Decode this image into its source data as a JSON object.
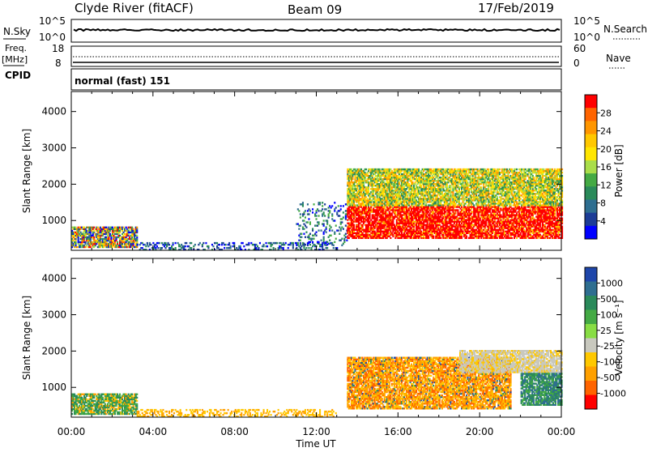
{
  "header": {
    "station": "Clyde River (fitACF)",
    "beam": "Beam 09",
    "date": "17/Feb/2019"
  },
  "noise_panel": {
    "left_label": "N.Sky",
    "left_ticks": [
      "10^5",
      "10^0"
    ],
    "right_ticks": [
      "10^5",
      "10^0"
    ],
    "right_label": "N.Search"
  },
  "freq_panel": {
    "left_label_line1": "Freq.",
    "left_label_line2": "[MHz]",
    "left_ticks": [
      "18",
      "8"
    ],
    "right_ticks": [
      "60",
      "0"
    ],
    "right_label": "Nave"
  },
  "cpid_panel": {
    "label": "CPID",
    "mode": "normal (fast) 151"
  },
  "time_axis": {
    "xlabel": "Time UT",
    "ticks": [
      "00:00",
      "04:00",
      "08:00",
      "12:00",
      "16:00",
      "20:00",
      "00:00"
    ]
  },
  "chart_data": [
    {
      "type": "heatmap",
      "panel": "power",
      "xlabel": "Time UT",
      "ylabel": "Slant Range [km]",
      "x_unit": "hours UT",
      "xlim": [
        0,
        24
      ],
      "ylim": [
        180,
        4550
      ],
      "yticks": [
        1000,
        2000,
        3000,
        4000
      ],
      "colorbar": {
        "label": "Power [dB]",
        "ticks": [
          "28",
          "24",
          "20",
          "16",
          "12",
          "8",
          "4"
        ],
        "colors": [
          "#ff0000",
          "#ff6400",
          "#ff9600",
          "#ffc800",
          "#ffe600",
          "#aade4a",
          "#44aa44",
          "#2a8a5a",
          "#2e6e90",
          "#1c3c96",
          "#0000ff"
        ]
      },
      "regions": [
        {
          "t0": 0.0,
          "t1": 3.2,
          "r0": 250,
          "r1": 800,
          "level": "mixed"
        },
        {
          "t0": 3.2,
          "t1": 13.0,
          "r0": 180,
          "r1": 400,
          "level": "low"
        },
        {
          "t0": 11.0,
          "t1": 13.5,
          "r0": 300,
          "r1": 1500,
          "level": "sparse"
        },
        {
          "t0": 13.5,
          "t1": 24.0,
          "r0": 500,
          "r1": 1400,
          "level": "high"
        },
        {
          "t0": 13.5,
          "t1": 24.0,
          "r0": 1400,
          "r1": 2400,
          "level": "medium"
        }
      ]
    },
    {
      "type": "heatmap",
      "panel": "velocity",
      "xlabel": "Time UT",
      "ylabel": "Slant Range [km]",
      "x_unit": "hours UT",
      "xlim": [
        0,
        24
      ],
      "ylim": [
        180,
        4550
      ],
      "yticks": [
        1000,
        2000,
        3000,
        4000
      ],
      "colorbar": {
        "label": "Velocity [m s⁻¹]",
        "ticks": [
          "1000",
          "500",
          "100",
          "25",
          "-25",
          "-100",
          "-500",
          "-1000"
        ],
        "colors": [
          "#1e46aa",
          "#2e6e90",
          "#2a8a5a",
          "#44aa44",
          "#88dd44",
          "#c8c8be",
          "#ffc800",
          "#ffa000",
          "#ff6400",
          "#ff0000"
        ]
      },
      "regions": [
        {
          "t0": 0.0,
          "t1": 3.2,
          "r0": 250,
          "r1": 800,
          "level": "green-mixed"
        },
        {
          "t0": 3.2,
          "t1": 13.0,
          "r0": 180,
          "r1": 400,
          "level": "orange-weak"
        },
        {
          "t0": 13.5,
          "t1": 21.5,
          "r0": 400,
          "r1": 1800,
          "level": "orange"
        },
        {
          "t0": 19.0,
          "t1": 24.0,
          "r0": 1400,
          "r1": 2000,
          "level": "grey"
        },
        {
          "t0": 22.0,
          "t1": 24.0,
          "r0": 500,
          "r1": 1400,
          "level": "green"
        }
      ]
    }
  ]
}
